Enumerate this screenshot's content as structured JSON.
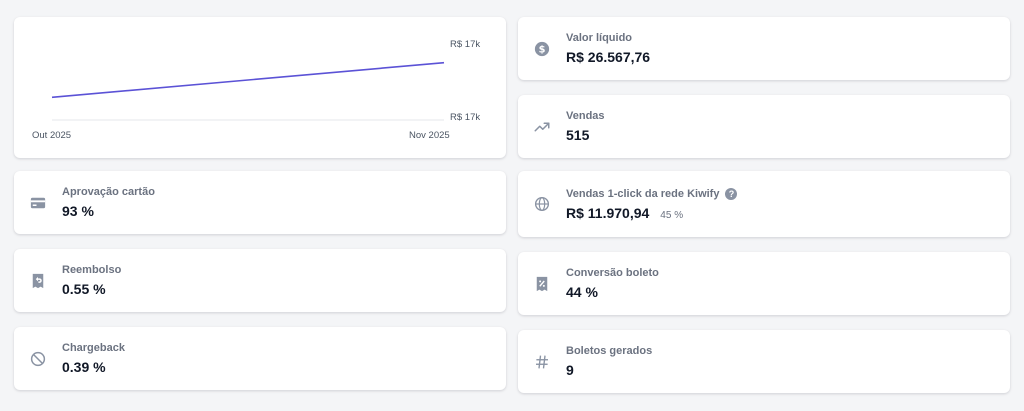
{
  "chart_data": {
    "type": "line",
    "categories": [
      "Out 2025",
      "Nov 2025"
    ],
    "series": [
      {
        "values": [
          16.6,
          17.4
        ],
        "color": "#5b52d6"
      }
    ],
    "y_tick_labels": [
      "R$ 17k",
      "R$ 17k"
    ],
    "ylim": [
      16.4,
      17.6
    ],
    "grid": true
  },
  "left_cards": [
    {
      "label": "Aprovação cartão",
      "value": "93 %",
      "icon": "credit-card-icon"
    },
    {
      "label": "Reembolso",
      "value": "0.55 %",
      "icon": "receipt-refund-icon"
    },
    {
      "label": "Chargeback",
      "value": "0.39 %",
      "icon": "ban-icon"
    }
  ],
  "right_cards": [
    {
      "label": "Valor líquido",
      "value": "R$ 26.567,76",
      "icon": "currency-dollar-icon"
    },
    {
      "label": "Vendas",
      "value": "515",
      "icon": "trending-up-icon"
    },
    {
      "label": "Vendas 1-click da rede Kiwify",
      "value": "R$ 11.970,94",
      "sub": "45 %",
      "help": "?",
      "icon": "globe-icon"
    },
    {
      "label": "Conversão boleto",
      "value": "44 %",
      "icon": "receipt-tax-icon"
    },
    {
      "label": "Boletos gerados",
      "value": "9",
      "icon": "hashtag-icon"
    }
  ]
}
